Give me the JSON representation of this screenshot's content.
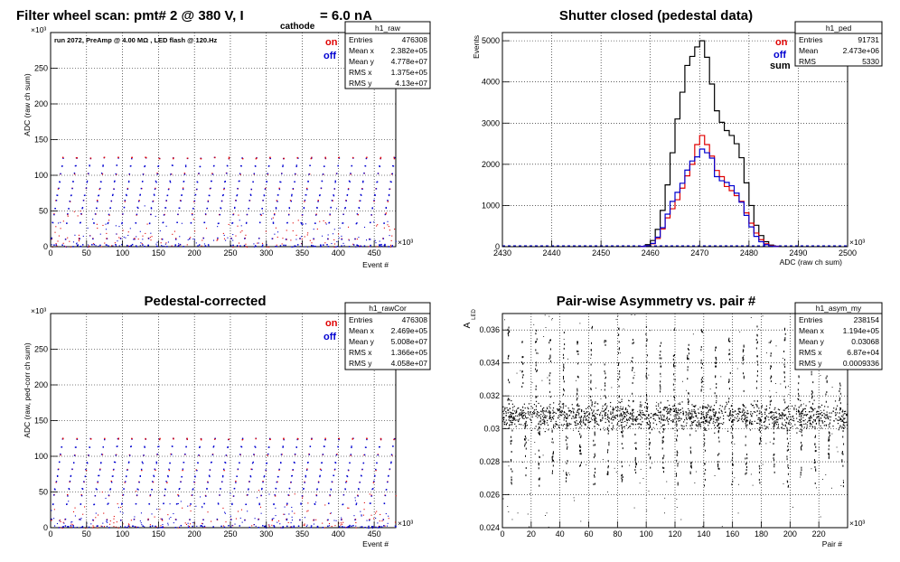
{
  "chart_data": [
    {
      "id": "raw",
      "type": "scatter",
      "title": "Filter wheel scan: pmt#   2 @   380 V, I",
      "title_sub": "cathode",
      "title_tail": "= 6.0 nA",
      "subtitle": "run 2072, PreAmp @ 4.00 MΩ , LED flash @  120.Hz",
      "xlabel": "Event #",
      "ylabel": "ADC (raw ch sum)",
      "x_exp": "×10³",
      "y_exp": "×10³",
      "xlim": [
        0,
        480
      ],
      "ylim": [
        0,
        300
      ],
      "xticks": [
        0,
        50,
        100,
        150,
        200,
        250,
        300,
        350,
        400,
        450
      ],
      "yticks": [
        0,
        50,
        100,
        150,
        200,
        250,
        300
      ],
      "ytick_labels": [
        "0",
        "50",
        "100",
        "150",
        "200",
        "250",
        ""
      ],
      "grid": true,
      "legend": {
        "position": "top-right",
        "items": [
          {
            "label": "on",
            "color": "#e00000"
          },
          {
            "label": "off",
            "color": "#0000d0"
          }
        ]
      },
      "stats": {
        "name": "h1_raw",
        "rows": [
          [
            "Entries",
            "476308"
          ],
          [
            "Mean x",
            "2.382e+05"
          ],
          [
            "Mean y",
            "4.778e+07"
          ],
          [
            "RMS x",
            "1.375e+05"
          ],
          [
            "RMS y",
            "4.13e+07"
          ]
        ]
      },
      "steps": [
        12,
        34,
        46,
        55,
        65,
        73,
        82,
        92,
        103,
        114,
        125
      ],
      "period_x": 19.2
    },
    {
      "id": "ped",
      "type": "histogram",
      "title": "Shutter closed (pedestal data)",
      "xlabel": "ADC (raw ch sum)",
      "ylabel": "Events",
      "x_exp": "×10³",
      "xlim": [
        2430,
        2500
      ],
      "ylim": [
        0,
        5200
      ],
      "xticks": [
        2430,
        2440,
        2450,
        2460,
        2470,
        2480,
        2490,
        2500
      ],
      "yticks": [
        0,
        1000,
        2000,
        3000,
        4000,
        5000
      ],
      "grid": true,
      "legend": {
        "position": "top-right",
        "items": [
          {
            "label": "on",
            "color": "#e00000"
          },
          {
            "label": "off",
            "color": "#0000d0"
          },
          {
            "label": "sum",
            "color": "#000000"
          }
        ]
      },
      "stats": {
        "name": "h1_ped",
        "rows": [
          [
            "Entries",
            "91731"
          ],
          [
            "Mean",
            "2.473e+06"
          ],
          [
            "RMS",
            "5330"
          ]
        ]
      },
      "bin_start": 2458,
      "bin_width": 1,
      "series": [
        {
          "name": "sum",
          "color": "#000000",
          "values": [
            10,
            50,
            150,
            420,
            880,
            1500,
            2280,
            3100,
            3750,
            4400,
            4620,
            4850,
            5000,
            4600,
            3950,
            3300,
            3020,
            2820,
            2700,
            2500,
            2160,
            1550,
            1000,
            520,
            270,
            120,
            40,
            12
          ]
        },
        {
          "name": "on",
          "color": "#e00000",
          "values": [
            5,
            25,
            70,
            200,
            430,
            700,
            920,
            1140,
            1420,
            1720,
            2000,
            2480,
            2700,
            2480,
            2200,
            1850,
            1700,
            1460,
            1360,
            1240,
            1100,
            820,
            570,
            330,
            170,
            70,
            25,
            8
          ]
        },
        {
          "name": "off",
          "color": "#0000d0",
          "values": [
            5,
            25,
            80,
            230,
            460,
            790,
            1100,
            1320,
            1540,
            1860,
            2080,
            2180,
            2370,
            2280,
            2150,
            1700,
            1600,
            1560,
            1480,
            1300,
            1080,
            760,
            480,
            250,
            120,
            50,
            15,
            4
          ]
        }
      ]
    },
    {
      "id": "rawCor",
      "type": "scatter",
      "title": "Pedestal-corrected",
      "xlabel": "Event #",
      "ylabel": "ADC (raw, ped-corr ch sum)",
      "x_exp": "×10³",
      "y_exp": "×10³",
      "xlim": [
        0,
        480
      ],
      "ylim": [
        0,
        300
      ],
      "xticks": [
        0,
        50,
        100,
        150,
        200,
        250,
        300,
        350,
        400,
        450
      ],
      "yticks": [
        0,
        50,
        100,
        150,
        200,
        250,
        300
      ],
      "ytick_labels": [
        "0",
        "50",
        "100",
        "150",
        "200",
        "250",
        ""
      ],
      "grid": true,
      "legend": {
        "position": "top-right",
        "items": [
          {
            "label": "on",
            "color": "#e00000"
          },
          {
            "label": "off",
            "color": "#0000d0"
          }
        ]
      },
      "stats": {
        "name": "h1_rawCor",
        "rows": [
          [
            "Entries",
            "476308"
          ],
          [
            "Mean x",
            "2.469e+05"
          ],
          [
            "Mean y",
            "5.008e+07"
          ],
          [
            "RMS x",
            "1.366e+05"
          ],
          [
            "RMS y",
            "4.058e+07"
          ]
        ]
      },
      "steps": [
        12,
        34,
        46,
        55,
        65,
        73,
        82,
        92,
        103,
        114,
        125
      ],
      "period_x": 19.2
    },
    {
      "id": "asym",
      "type": "scatter",
      "title": "Pair-wise Asymmetry vs. pair #",
      "xlabel": "Pair #",
      "ylabel": "A",
      "ylabel_sub": "LED",
      "x_exp": "×10³",
      "xlim": [
        0,
        240
      ],
      "ylim": [
        0.024,
        0.037
      ],
      "xticks": [
        0,
        20,
        40,
        60,
        80,
        100,
        120,
        140,
        160,
        180,
        200,
        220
      ],
      "yticks": [
        0.024,
        0.026,
        0.028,
        0.03,
        0.032,
        0.034,
        0.036
      ],
      "ytick_labels": [
        "0.024",
        "0.026",
        "0.028",
        "0.03",
        "0.032",
        "0.034",
        "0.036"
      ],
      "grid": true,
      "stats": {
        "name": "h1_asym_my",
        "rows": [
          [
            "Entries",
            "238154"
          ],
          [
            "Mean x",
            "1.194e+05"
          ],
          [
            "Mean y",
            "0.03068"
          ],
          [
            "RMS x",
            "6.87e+04"
          ],
          [
            "RMS y",
            "0.0009336"
          ]
        ]
      },
      "band_center": 0.0308,
      "band_halfwidth": 0.0006,
      "spike_period": 9.6
    }
  ]
}
